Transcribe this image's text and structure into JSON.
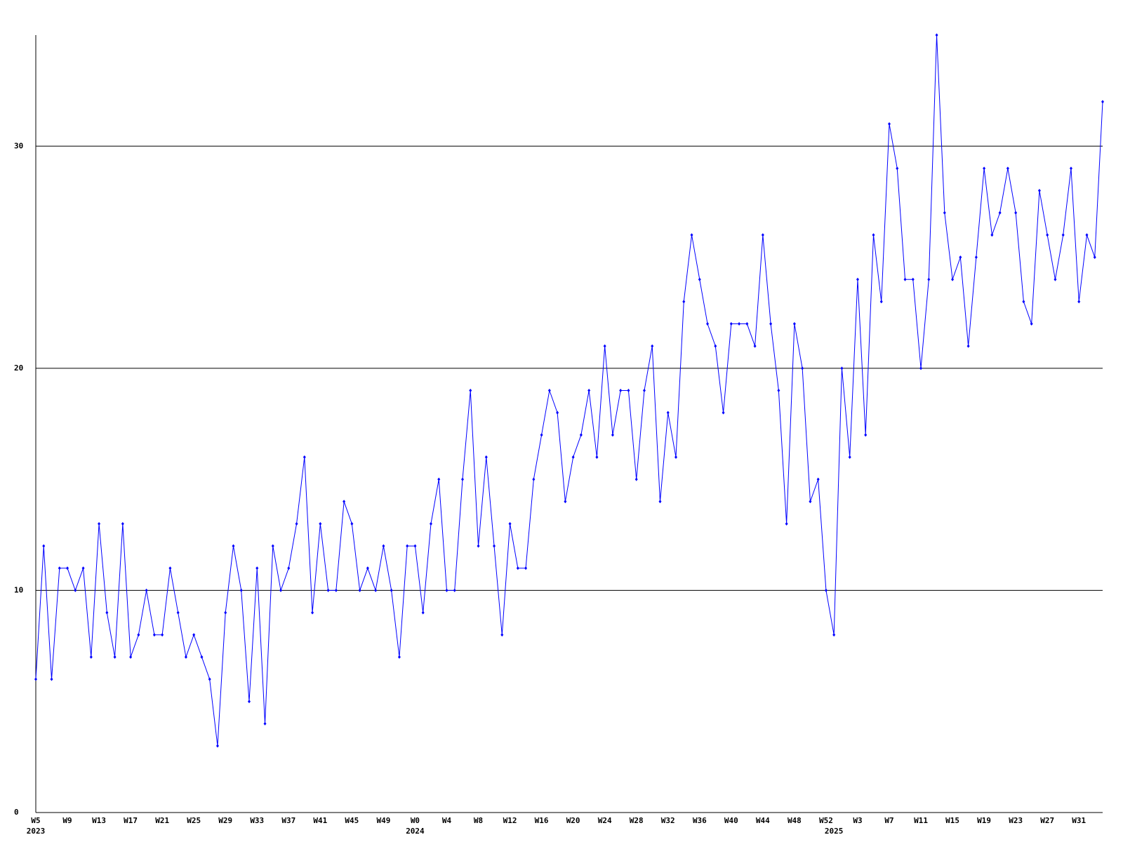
{
  "chart_data": {
    "type": "line",
    "categories": [
      "W5",
      null,
      null,
      null,
      "W9",
      null,
      null,
      null,
      "W13",
      null,
      null,
      null,
      "W17",
      null,
      null,
      null,
      "W21",
      null,
      null,
      null,
      "W25",
      null,
      null,
      null,
      "W29",
      null,
      null,
      null,
      "W33",
      null,
      null,
      null,
      "W37",
      null,
      null,
      null,
      "W41",
      null,
      null,
      null,
      "W45",
      null,
      null,
      null,
      "W49",
      null,
      null,
      null,
      "W0",
      null,
      null,
      null,
      "W4",
      null,
      null,
      null,
      "W8",
      null,
      null,
      null,
      "W12",
      null,
      null,
      null,
      "W16",
      null,
      null,
      null,
      "W20",
      null,
      null,
      null,
      "W24",
      null,
      null,
      null,
      "W28",
      null,
      null,
      null,
      "W32",
      null,
      null,
      null,
      "W36",
      null,
      null,
      null,
      "W40",
      null,
      null,
      null,
      "W44",
      null,
      null,
      null,
      "W48",
      null,
      null,
      null,
      "W52",
      null,
      null,
      null,
      "W3",
      null,
      null,
      null,
      "W7",
      null,
      null,
      null,
      "W11",
      null,
      null,
      null,
      "W15",
      null,
      null,
      null,
      "W19",
      null,
      null,
      null,
      "W23",
      null,
      null,
      null,
      "W27",
      null,
      null,
      null,
      "W31",
      null,
      null,
      null
    ],
    "year_labels": [
      "2023",
      null,
      null,
      null,
      null,
      null,
      null,
      null,
      null,
      null,
      null,
      null,
      null,
      null,
      null,
      null,
      null,
      null,
      null,
      null,
      null,
      null,
      null,
      null,
      null,
      null,
      null,
      null,
      null,
      null,
      null,
      null,
      null,
      null,
      null,
      null,
      null,
      null,
      null,
      null,
      null,
      null,
      null,
      null,
      null,
      null,
      null,
      null,
      "2024",
      null,
      null,
      null,
      null,
      null,
      null,
      null,
      null,
      null,
      null,
      null,
      null,
      null,
      null,
      null,
      null,
      null,
      null,
      null,
      null,
      null,
      null,
      null,
      null,
      null,
      null,
      null,
      null,
      null,
      null,
      null,
      null,
      null,
      null,
      null,
      null,
      null,
      null,
      null,
      null,
      null,
      null,
      null,
      null,
      null,
      null,
      null,
      null,
      null,
      null,
      null,
      null,
      "2025",
      null,
      null,
      null,
      null,
      null,
      null,
      null,
      null,
      null,
      null,
      null,
      null,
      null,
      null,
      null,
      null,
      null,
      null,
      null,
      null,
      null,
      null,
      null,
      null,
      null,
      null,
      null,
      null,
      null,
      null,
      null,
      null,
      null
    ],
    "series": [
      {
        "color": "#0000ff",
        "values": [
          6,
          12,
          6,
          11,
          11,
          10,
          11,
          7,
          13,
          9,
          7,
          13,
          7,
          8,
          10,
          8,
          8,
          11,
          9,
          7,
          8,
          7,
          6,
          3,
          9,
          12,
          10,
          5,
          11,
          4,
          12,
          10,
          11,
          13,
          16,
          9,
          13,
          10,
          10,
          14,
          13,
          10,
          11,
          10,
          12,
          10,
          7,
          12,
          12,
          9,
          13,
          15,
          10,
          10,
          15,
          19,
          12,
          16,
          12,
          8,
          13,
          11,
          11,
          15,
          17,
          19,
          18,
          14,
          16,
          17,
          19,
          16,
          21,
          17,
          19,
          19,
          15,
          19,
          21,
          14,
          18,
          16,
          23,
          26,
          24,
          22,
          21,
          18,
          22,
          22,
          22,
          21,
          26,
          22,
          19,
          13,
          22,
          20,
          14,
          15,
          10,
          8,
          20,
          16,
          24,
          17,
          26,
          23,
          31,
          29,
          24,
          24,
          20,
          24,
          35,
          27,
          24,
          25,
          21,
          25,
          29,
          26,
          27,
          29,
          27,
          23,
          22,
          28,
          26,
          24,
          26,
          29,
          23,
          26,
          25,
          32
        ]
      }
    ],
    "ylim": [
      0,
      35
    ],
    "yticks": [
      0,
      10,
      20,
      30
    ],
    "grid": true
  }
}
